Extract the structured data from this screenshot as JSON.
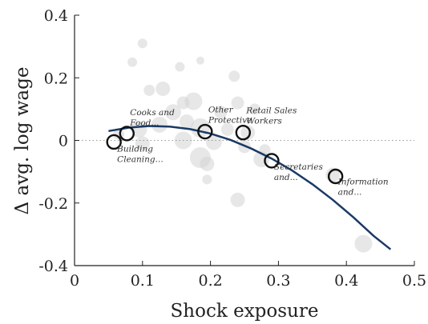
{
  "chart_data": {
    "type": "scatter",
    "xlabel": "Shock exposure",
    "ylabel": "Δ avg. log wage",
    "xlim": [
      0,
      0.5
    ],
    "ylim": [
      -0.4,
      0.4
    ],
    "xticks": [
      0,
      0.1,
      0.2,
      0.3,
      0.4,
      0.5
    ],
    "xtick_labels": [
      "0",
      "0.1",
      "0.2",
      "0.3",
      "0.4",
      "0.5"
    ],
    "yticks": [
      -0.4,
      -0.2,
      0,
      0.2,
      0.4
    ],
    "ytick_labels": [
      "-0.4",
      "-0.2",
      "0",
      "0.2",
      "0.4"
    ],
    "grid": false,
    "zero_line": "dotted",
    "colors": {
      "fit": "#1a3a66",
      "bubble": "#d3d3d3",
      "highlight": "#111111"
    },
    "background_points": [
      {
        "x": 0.1,
        "y": 0.31,
        "r": 6
      },
      {
        "x": 0.085,
        "y": 0.25,
        "r": 6
      },
      {
        "x": 0.185,
        "y": 0.255,
        "r": 5
      },
      {
        "x": 0.155,
        "y": 0.235,
        "r": 6
      },
      {
        "x": 0.235,
        "y": 0.205,
        "r": 7
      },
      {
        "x": 0.13,
        "y": 0.165,
        "r": 9
      },
      {
        "x": 0.11,
        "y": 0.16,
        "r": 7
      },
      {
        "x": 0.175,
        "y": 0.125,
        "r": 11
      },
      {
        "x": 0.16,
        "y": 0.12,
        "r": 8
      },
      {
        "x": 0.24,
        "y": 0.12,
        "r": 8
      },
      {
        "x": 0.265,
        "y": 0.1,
        "r": 7
      },
      {
        "x": 0.145,
        "y": 0.09,
        "r": 10
      },
      {
        "x": 0.215,
        "y": 0.09,
        "r": 8
      },
      {
        "x": 0.165,
        "y": 0.06,
        "r": 9
      },
      {
        "x": 0.125,
        "y": 0.05,
        "r": 10
      },
      {
        "x": 0.095,
        "y": 0.035,
        "r": 10
      },
      {
        "x": 0.185,
        "y": 0.04,
        "r": 12
      },
      {
        "x": 0.065,
        "y": 0.02,
        "r": 7
      },
      {
        "x": 0.225,
        "y": 0.035,
        "r": 8
      },
      {
        "x": 0.255,
        "y": 0.025,
        "r": 9
      },
      {
        "x": 0.16,
        "y": 0.0,
        "r": 11
      },
      {
        "x": 0.205,
        "y": -0.005,
        "r": 10
      },
      {
        "x": 0.1,
        "y": -0.01,
        "r": 9
      },
      {
        "x": 0.25,
        "y": -0.02,
        "r": 8
      },
      {
        "x": 0.185,
        "y": -0.055,
        "r": 13
      },
      {
        "x": 0.195,
        "y": -0.075,
        "r": 9
      },
      {
        "x": 0.275,
        "y": -0.06,
        "r": 10
      },
      {
        "x": 0.28,
        "y": -0.03,
        "r": 7
      },
      {
        "x": 0.195,
        "y": -0.125,
        "r": 6
      },
      {
        "x": 0.24,
        "y": -0.19,
        "r": 9
      },
      {
        "x": 0.38,
        "y": -0.11,
        "r": 9
      },
      {
        "x": 0.425,
        "y": -0.33,
        "r": 11
      }
    ],
    "highlighted_points": [
      {
        "x": 0.058,
        "y": -0.005,
        "label": [
          "Building",
          "Cleaning..."
        ]
      },
      {
        "x": 0.077,
        "y": 0.022,
        "label": [
          "Cooks and",
          "Food..."
        ]
      },
      {
        "x": 0.192,
        "y": 0.028,
        "label": [
          "Other",
          "Protective"
        ]
      },
      {
        "x": 0.248,
        "y": 0.025,
        "label": [
          "Retail Sales",
          "Workers"
        ]
      },
      {
        "x": 0.29,
        "y": -0.065,
        "label": [
          "Secretaries",
          "and..."
        ]
      },
      {
        "x": 0.384,
        "y": -0.115,
        "label": [
          "Information",
          "and..."
        ]
      }
    ],
    "fit_line": {
      "x": [
        0.05,
        0.08,
        0.11,
        0.14,
        0.17,
        0.2,
        0.23,
        0.26,
        0.29,
        0.32,
        0.35,
        0.38,
        0.41,
        0.44,
        0.465
      ],
      "y": [
        0.03,
        0.041,
        0.046,
        0.044,
        0.036,
        0.022,
        0.001,
        -0.026,
        -0.058,
        -0.096,
        -0.14,
        -0.19,
        -0.245,
        -0.305,
        -0.348
      ]
    }
  }
}
